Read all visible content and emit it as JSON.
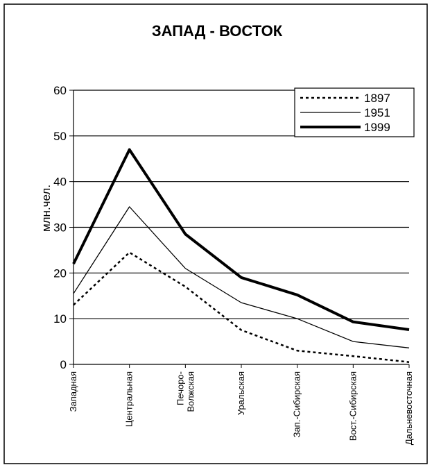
{
  "chart_data": {
    "type": "line",
    "title": "ЗАПАД - ВОСТОК",
    "y_label": "млн.чел.",
    "categories": [
      "Западная",
      "Центральная",
      "Печоро- Волжская",
      "Уральская",
      "Зап.-Сибирская",
      "Вост.-Сибирская",
      "Дальневосточная"
    ],
    "series": [
      {
        "name": "1897",
        "color": "#000000",
        "line_style": "dotted",
        "values": [
          13,
          24.5,
          17,
          7.5,
          3,
          1.8,
          0.5
        ]
      },
      {
        "name": "1951",
        "color": "#000000",
        "line_style": "solid",
        "values": [
          15.5,
          34.5,
          21,
          13.5,
          10,
          5,
          3.6
        ]
      },
      {
        "name": "1999",
        "color": "#000000",
        "line_style": "bold",
        "values": [
          22,
          47,
          28.5,
          19,
          15.2,
          9.3,
          7.6
        ]
      }
    ],
    "ylim": [
      0,
      60
    ],
    "yticks": [
      0,
      10,
      20,
      30,
      40,
      50,
      60
    ],
    "grid": true,
    "legend": "top-right"
  }
}
